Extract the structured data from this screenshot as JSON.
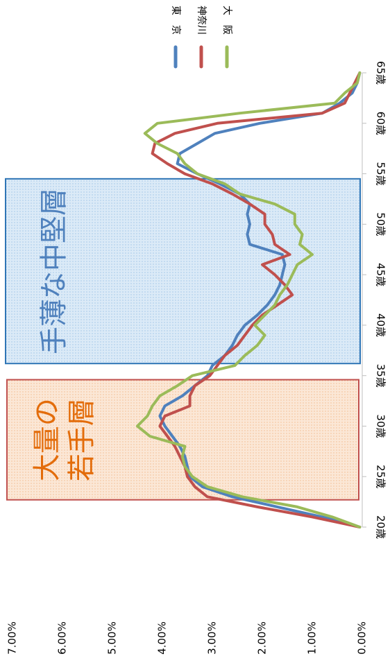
{
  "chart_data": {
    "type": "line",
    "orientation": "rotated-90-clockwise",
    "x": [
      20,
      21,
      22,
      23,
      24,
      25,
      26,
      27,
      28,
      29,
      30,
      31,
      32,
      33,
      34,
      35,
      36,
      37,
      38,
      39,
      40,
      41,
      42,
      43,
      44,
      45,
      46,
      47,
      48,
      49,
      50,
      51,
      52,
      53,
      54,
      55,
      56,
      57,
      58,
      59,
      60,
      61,
      62,
      63,
      64,
      65
    ],
    "x_tick_labels": [
      "20歳",
      "25歳",
      "30歳",
      "35歳",
      "40歳",
      "45歳",
      "50歳",
      "55歳",
      "60歳",
      "65歳"
    ],
    "x_tick_values": [
      20,
      25,
      30,
      35,
      40,
      45,
      50,
      55,
      60,
      65
    ],
    "ylim": [
      0,
      7
    ],
    "y_tick_values": [
      0,
      1,
      2,
      3,
      4,
      5,
      6,
      7
    ],
    "y_tick_labels": [
      "0.00%",
      "1.00%",
      "2.00%",
      "3.00%",
      "4.00%",
      "5.00%",
      "6.00%",
      "7.00%"
    ],
    "grid": "none",
    "legend_position": "top-right",
    "series": [
      {
        "name": "東　京",
        "color": "#4f81bd",
        "values": [
          0.05,
          0.8,
          1.7,
          2.6,
          3.2,
          3.45,
          3.5,
          3.55,
          3.65,
          3.8,
          3.95,
          4.05,
          3.95,
          3.6,
          3.35,
          3.1,
          3.0,
          2.75,
          2.6,
          2.5,
          2.35,
          2.1,
          1.9,
          1.75,
          1.65,
          1.6,
          1.55,
          1.6,
          2.25,
          2.3,
          2.25,
          2.3,
          2.25,
          2.45,
          2.85,
          3.3,
          3.7,
          3.65,
          3.3,
          2.95,
          2.05,
          0.8,
          0.45,
          0.2,
          0.1,
          0.05
        ]
      },
      {
        "name": "神奈川",
        "color": "#c0504d",
        "values": [
          0.05,
          1.0,
          2.1,
          3.1,
          3.35,
          3.5,
          3.55,
          3.65,
          3.75,
          3.9,
          4.05,
          3.95,
          3.45,
          3.45,
          3.35,
          3.05,
          2.9,
          2.75,
          2.5,
          2.35,
          2.2,
          2.0,
          1.7,
          1.4,
          1.55,
          1.75,
          2.0,
          1.45,
          1.75,
          1.8,
          1.95,
          1.95,
          2.25,
          2.6,
          3.0,
          3.55,
          3.9,
          4.2,
          4.15,
          3.75,
          2.9,
          0.8,
          0.35,
          0.25,
          0.15,
          0.05
        ]
      },
      {
        "name": "大　阪",
        "color": "#9bbb59",
        "values": [
          0.05,
          0.6,
          1.3,
          2.4,
          3.1,
          3.4,
          3.55,
          3.6,
          3.55,
          4.25,
          4.5,
          4.3,
          4.2,
          4.05,
          3.7,
          3.4,
          2.55,
          2.35,
          2.1,
          1.95,
          2.15,
          1.95,
          1.75,
          1.65,
          1.5,
          1.4,
          1.3,
          1.0,
          1.25,
          1.2,
          1.35,
          1.35,
          1.75,
          2.45,
          2.75,
          3.3,
          3.55,
          3.7,
          4.1,
          4.35,
          4.1,
          2.45,
          0.55,
          0.35,
          0.1,
          0.05
        ]
      }
    ],
    "annotations": [
      {
        "text": "大量の\n若手層",
        "x_range": [
          22.7,
          34.6
        ],
        "color": "#e36c0a",
        "fill": "#fde9d9",
        "border": "#c0504d"
      },
      {
        "text": "手薄な中堅層",
        "x_range": [
          36.2,
          54.5
        ],
        "color": "#4f81bd",
        "fill": "#dbeaf7",
        "border": "#2e75b6"
      }
    ]
  }
}
